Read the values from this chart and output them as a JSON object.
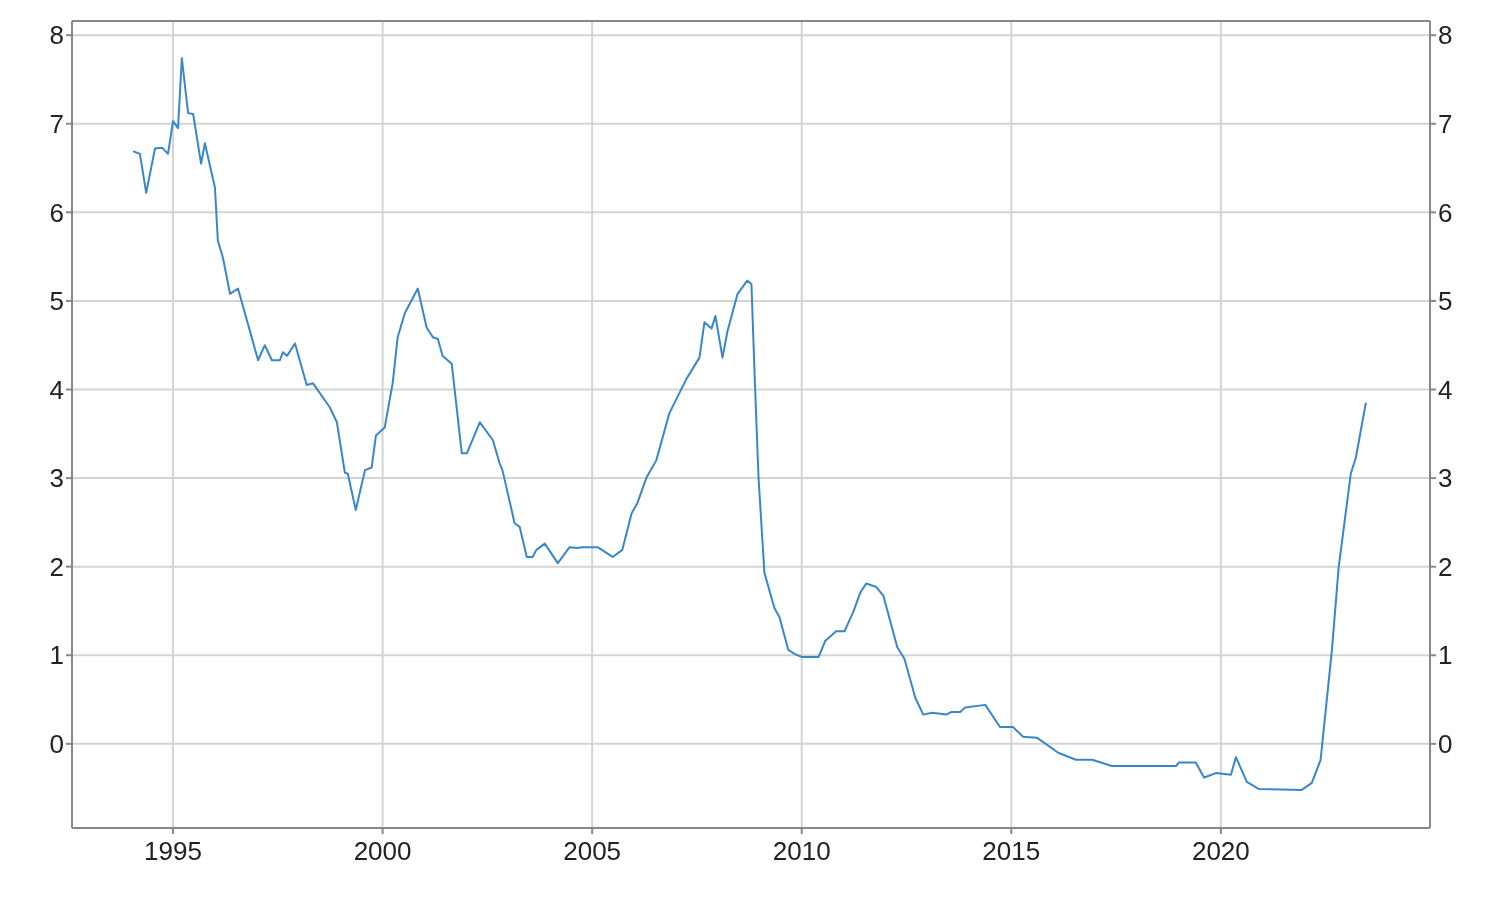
{
  "chart_data": {
    "type": "line",
    "x": [
      1994.05,
      1994.21,
      1994.36,
      1994.57,
      1994.74,
      1994.88,
      1995.0,
      1995.12,
      1995.21,
      1995.36,
      1995.48,
      1995.67,
      1995.76,
      1996.0,
      1996.07,
      1996.19,
      1996.36,
      1996.55,
      1997.03,
      1997.19,
      1997.36,
      1997.55,
      1997.62,
      1997.72,
      1997.91,
      1998.19,
      1998.34,
      1998.74,
      1998.91,
      1999.1,
      1999.17,
      1999.36,
      1999.58,
      1999.74,
      1999.84,
      2000.05,
      2000.24,
      2000.36,
      2000.53,
      2000.84,
      2001.05,
      2001.2,
      2001.32,
      2001.43,
      2001.65,
      2001.89,
      2002.01,
      2002.32,
      2002.63,
      2002.79,
      2002.86,
      2003.15,
      2003.27,
      2003.44,
      2003.58,
      2003.67,
      2003.87,
      2004.18,
      2004.46,
      2004.65,
      2004.77,
      2005.13,
      2005.49,
      2005.72,
      2005.94,
      2006.08,
      2006.3,
      2006.53,
      2006.84,
      2007.25,
      2007.56,
      2007.68,
      2007.85,
      2007.94,
      2008.11,
      2008.23,
      2008.47,
      2008.7,
      2008.8,
      2008.89,
      2008.97,
      2009.11,
      2009.35,
      2009.47,
      2009.68,
      2009.85,
      2010.01,
      2010.4,
      2010.56,
      2010.82,
      2011.02,
      2011.23,
      2011.4,
      2011.54,
      2011.78,
      2011.95,
      2012.28,
      2012.45,
      2012.71,
      2012.9,
      2013.11,
      2013.45,
      2013.57,
      2013.78,
      2013.9,
      2014.38,
      2014.73,
      2015.04,
      2015.28,
      2015.61,
      2016.12,
      2016.54,
      2016.93,
      2017.4,
      2018.93,
      2019.0,
      2019.4,
      2019.6,
      2019.88,
      2020.24,
      2020.36,
      2020.62,
      2020.91,
      2021.93,
      2022.17,
      2022.38,
      2022.65,
      2022.81,
      2023.1,
      2023.22,
      2023.46
    ],
    "series": [
      {
        "color": "#3a87c8",
        "values": [
          6.69,
          6.66,
          6.22,
          6.72,
          6.73,
          6.66,
          7.03,
          6.95,
          7.74,
          7.12,
          7.11,
          6.55,
          6.78,
          6.28,
          5.68,
          5.49,
          5.08,
          5.14,
          4.33,
          4.5,
          4.33,
          4.33,
          4.42,
          4.38,
          4.52,
          4.05,
          4.07,
          3.8,
          3.63,
          3.06,
          3.05,
          2.64,
          3.09,
          3.12,
          3.48,
          3.57,
          4.07,
          4.59,
          4.86,
          5.14,
          4.7,
          4.59,
          4.57,
          4.38,
          4.29,
          3.28,
          3.28,
          3.63,
          3.43,
          3.17,
          3.09,
          2.49,
          2.45,
          2.11,
          2.11,
          2.19,
          2.26,
          2.04,
          2.22,
          2.21,
          2.22,
          2.22,
          2.11,
          2.19,
          2.6,
          2.72,
          3.01,
          3.2,
          3.73,
          4.12,
          4.36,
          4.76,
          4.69,
          4.83,
          4.36,
          4.66,
          5.08,
          5.23,
          5.19,
          3.99,
          3.0,
          1.93,
          1.53,
          1.43,
          1.06,
          1.01,
          0.98,
          0.98,
          1.16,
          1.27,
          1.27,
          1.49,
          1.71,
          1.81,
          1.77,
          1.67,
          1.09,
          0.96,
          0.52,
          0.33,
          0.35,
          0.33,
          0.36,
          0.36,
          0.41,
          0.44,
          0.19,
          0.19,
          0.08,
          0.07,
          -0.1,
          -0.18,
          -0.18,
          -0.25,
          -0.25,
          -0.21,
          -0.21,
          -0.38,
          -0.33,
          -0.35,
          -0.15,
          -0.43,
          -0.51,
          -0.52,
          -0.44,
          -0.18,
          1.06,
          1.99,
          3.05,
          3.23,
          3.85
        ]
      }
    ],
    "xlim": [
      1992.59,
      2024.99
    ],
    "xticks": [
      1995,
      2000,
      2005,
      2010,
      2015,
      2020
    ],
    "ylim": [
      -0.95,
      8.16
    ],
    "yticks": [
      0,
      1,
      2,
      3,
      4,
      5,
      6,
      7,
      8
    ],
    "y2lim": [
      -0.95,
      8.16
    ],
    "y2ticks": [
      0,
      1,
      2,
      3,
      4,
      5,
      6,
      7,
      8
    ],
    "grid": true
  }
}
